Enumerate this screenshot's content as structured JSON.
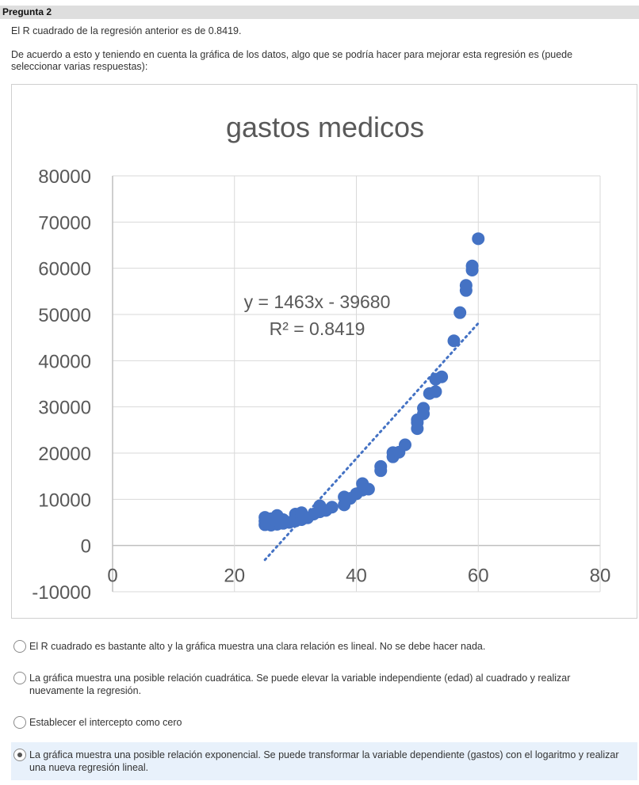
{
  "question": {
    "header": "Pregunta 2",
    "line1": "El R cuadrado de la regresión anterior es de 0.8419.",
    "line2a": "De acuerdo a esto y teniendo en cuenta la gráfica de los datos, algo que se podría hacer para mejorar esta regresión es (puede",
    "line2b": "seleccionar varias respuestas):"
  },
  "chart_data": {
    "type": "scatter",
    "title": "gastos medicos",
    "xlabel": "",
    "ylabel": "",
    "xlim": [
      0,
      80
    ],
    "ylim": [
      -10000,
      80000
    ],
    "xticks": [
      0,
      20,
      40,
      60,
      80
    ],
    "yticks": [
      -10000,
      0,
      10000,
      20000,
      30000,
      40000,
      50000,
      60000,
      70000,
      80000
    ],
    "grid": true,
    "marker_color": "#4472c4",
    "trendline": {
      "type": "linear",
      "slope": 1463,
      "intercept": -39680,
      "x_range": [
        25,
        60
      ],
      "equation": "y = 1463x - 39680",
      "r2": "R² = 0.8419"
    },
    "points": [
      [
        25,
        4500
      ],
      [
        25,
        5300
      ],
      [
        25,
        6100
      ],
      [
        26,
        4400
      ],
      [
        26,
        5000
      ],
      [
        26,
        5800
      ],
      [
        27,
        4600
      ],
      [
        27,
        5400
      ],
      [
        27,
        6500
      ],
      [
        28,
        4800
      ],
      [
        28,
        5600
      ],
      [
        29,
        5000
      ],
      [
        30,
        5300
      ],
      [
        30,
        6000
      ],
      [
        30,
        6800
      ],
      [
        31,
        5600
      ],
      [
        31,
        6300
      ],
      [
        31,
        7100
      ],
      [
        32,
        6000
      ],
      [
        33,
        6800
      ],
      [
        34,
        7300
      ],
      [
        34,
        8600
      ],
      [
        35,
        7600
      ],
      [
        36,
        8300
      ],
      [
        38,
        8800
      ],
      [
        38,
        10500
      ],
      [
        39,
        10200
      ],
      [
        40,
        11200
      ],
      [
        41,
        12000
      ],
      [
        41,
        13400
      ],
      [
        42,
        12200
      ],
      [
        44,
        16200
      ],
      [
        44,
        17100
      ],
      [
        46,
        19200
      ],
      [
        46,
        20100
      ],
      [
        47,
        20200
      ],
      [
        48,
        21800
      ],
      [
        50,
        25300
      ],
      [
        50,
        26600
      ],
      [
        50,
        27200
      ],
      [
        51,
        28500
      ],
      [
        51,
        29700
      ],
      [
        52,
        32900
      ],
      [
        53,
        33300
      ],
      [
        53,
        36000
      ],
      [
        54,
        36500
      ],
      [
        56,
        44300
      ],
      [
        57,
        50400
      ],
      [
        58,
        55200
      ],
      [
        58,
        56300
      ],
      [
        59,
        59600
      ],
      [
        59,
        60500
      ],
      [
        60,
        66400
      ]
    ]
  },
  "options": [
    {
      "text": "El R cuadrado es bastante alto y la gráfica muestra una clara relación es lineal. No se debe hacer nada.",
      "selected": false
    },
    {
      "text": "La gráfica muestra una posible relación cuadrática. Se puede elevar la variable independiente (edad) al cuadrado y realizar nuevamente la regresión.",
      "selected": false
    },
    {
      "text": "Establecer el intercepto como cero",
      "selected": false
    },
    {
      "text": "La gráfica muestra una posible relación exponencial. Se puede transformar la variable dependiente (gastos) con el logaritmo y realizar una nueva regresión lineal.",
      "selected": true
    }
  ]
}
